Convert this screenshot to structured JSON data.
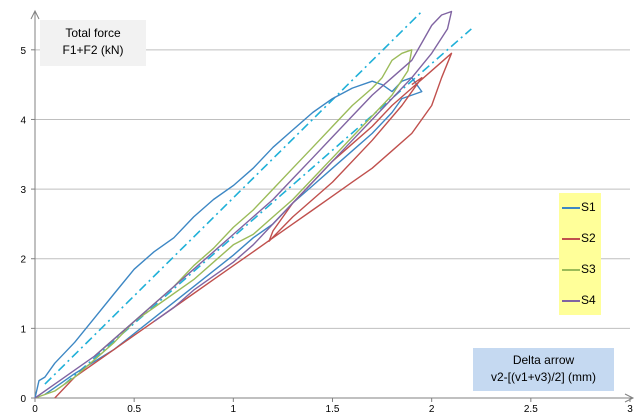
{
  "chart_data": {
    "type": "line",
    "x_ticks": [
      "0",
      "0.5",
      "1",
      "1.5",
      "2",
      "2.5",
      "3"
    ],
    "y_ticks": [
      "0",
      "1",
      "2",
      "3",
      "4",
      "5"
    ],
    "xlim": [
      0,
      3
    ],
    "ylim": [
      0,
      5.5
    ],
    "grid": "horizontal",
    "legend_position": "right",
    "ylabel_line1": "Total force",
    "ylabel_line2": "F1+F2 (kN)",
    "xlabel_line1": "Delta arrow",
    "xlabel_line2": "v2-[(v1+v3)/2] (mm)",
    "series": [
      {
        "name": "S1",
        "color": "#3d87c4",
        "x": [
          0,
          0.02,
          0.05,
          0.1,
          0.2,
          0.3,
          0.4,
          0.5,
          0.6,
          0.7,
          0.8,
          0.9,
          1.0,
          1.1,
          1.2,
          1.3,
          1.4,
          1.5,
          1.6,
          1.7,
          1.75,
          1.8,
          1.85,
          1.9,
          1.95,
          1.85,
          1.8,
          1.7,
          1.6,
          1.5,
          1.4,
          1.3,
          1.2,
          1.1,
          1.0,
          0.8,
          0.6,
          0.4,
          0.2,
          0.1,
          0.05
        ],
        "y": [
          0,
          0.25,
          0.3,
          0.5,
          0.8,
          1.15,
          1.5,
          1.85,
          2.1,
          2.3,
          2.6,
          2.85,
          3.05,
          3.3,
          3.6,
          3.85,
          4.1,
          4.3,
          4.45,
          4.55,
          4.5,
          4.4,
          4.55,
          4.6,
          4.4,
          4.3,
          4.1,
          3.8,
          3.55,
          3.3,
          3.05,
          2.8,
          2.5,
          2.3,
          2.05,
          1.6,
          1.15,
          0.7,
          0.35,
          0.15,
          0.05
        ]
      },
      {
        "name": "S2",
        "color": "#c0504d",
        "x": [
          0.1,
          0.2,
          0.3,
          0.4,
          0.5,
          0.6,
          0.7,
          0.8,
          0.9,
          1.0,
          1.1,
          1.2,
          1.3,
          1.4,
          1.5,
          1.6,
          1.7,
          1.8,
          1.9,
          2.0,
          2.05,
          2.1,
          2.08,
          2.0,
          1.9,
          1.8,
          1.7,
          1.6,
          1.5,
          1.4,
          1.3,
          1.2,
          1.18,
          1.3,
          1.5,
          1.7,
          1.85,
          1.95,
          1.9
        ],
        "y": [
          0,
          0.3,
          0.5,
          0.7,
          0.9,
          1.1,
          1.3,
          1.5,
          1.7,
          1.9,
          2.1,
          2.3,
          2.5,
          2.7,
          2.9,
          3.1,
          3.3,
          3.55,
          3.8,
          4.2,
          4.6,
          4.95,
          4.9,
          4.7,
          4.45,
          4.2,
          3.9,
          3.65,
          3.4,
          3.1,
          2.8,
          2.4,
          2.25,
          2.6,
          3.1,
          3.7,
          4.2,
          4.6,
          4.5
        ]
      },
      {
        "name": "S3",
        "color": "#9bbb59",
        "x": [
          0,
          0.1,
          0.2,
          0.3,
          0.4,
          0.5,
          0.6,
          0.7,
          0.8,
          0.9,
          1.0,
          1.1,
          1.2,
          1.3,
          1.4,
          1.5,
          1.6,
          1.7,
          1.75,
          1.8,
          1.85,
          1.9,
          1.88,
          1.8,
          1.7,
          1.6,
          1.5,
          1.4,
          1.3,
          1.2,
          1.1,
          1.0,
          0.9,
          0.8,
          0.6,
          0.5,
          0.4,
          0.3
        ],
        "y": [
          0,
          0.1,
          0.3,
          0.55,
          0.8,
          1.1,
          1.35,
          1.6,
          1.9,
          2.15,
          2.45,
          2.7,
          3.0,
          3.3,
          3.6,
          3.9,
          4.2,
          4.45,
          4.6,
          4.85,
          4.95,
          5.0,
          4.7,
          4.35,
          4.05,
          3.75,
          3.45,
          3.15,
          2.85,
          2.6,
          2.35,
          2.2,
          1.95,
          1.7,
          1.3,
          1.1,
          0.85,
          0.6
        ]
      },
      {
        "name": "S4",
        "color": "#8064a2",
        "x": [
          0,
          0.1,
          0.2,
          0.3,
          0.4,
          0.5,
          0.6,
          0.7,
          0.8,
          0.9,
          1.0,
          1.1,
          1.2,
          1.3,
          1.4,
          1.5,
          1.6,
          1.7,
          1.8,
          1.9,
          1.95,
          2.0,
          2.05,
          2.1,
          2.08,
          2.0,
          1.9,
          1.8,
          1.7,
          1.6,
          1.5,
          1.4,
          1.3,
          1.2,
          1.1,
          1.0,
          0.9,
          0.8,
          0.7,
          0.6
        ],
        "y": [
          0,
          0.2,
          0.4,
          0.6,
          0.85,
          1.1,
          1.35,
          1.6,
          1.85,
          2.1,
          2.35,
          2.6,
          2.85,
          3.15,
          3.45,
          3.75,
          4.05,
          4.35,
          4.6,
          4.85,
          5.1,
          5.35,
          5.5,
          5.55,
          5.3,
          4.95,
          4.6,
          4.3,
          4.0,
          3.7,
          3.4,
          3.1,
          2.8,
          2.5,
          2.2,
          1.95,
          1.75,
          1.55,
          1.3,
          1.1
        ]
      }
    ],
    "trendlines": [
      {
        "color": "#1fb0d8",
        "x": [
          0.05,
          1.95
        ],
        "y": [
          0.2,
          5.55
        ]
      },
      {
        "color": "#1fb0d8",
        "x": [
          0.15,
          2.2
        ],
        "y": [
          0.2,
          5.3
        ]
      }
    ]
  }
}
